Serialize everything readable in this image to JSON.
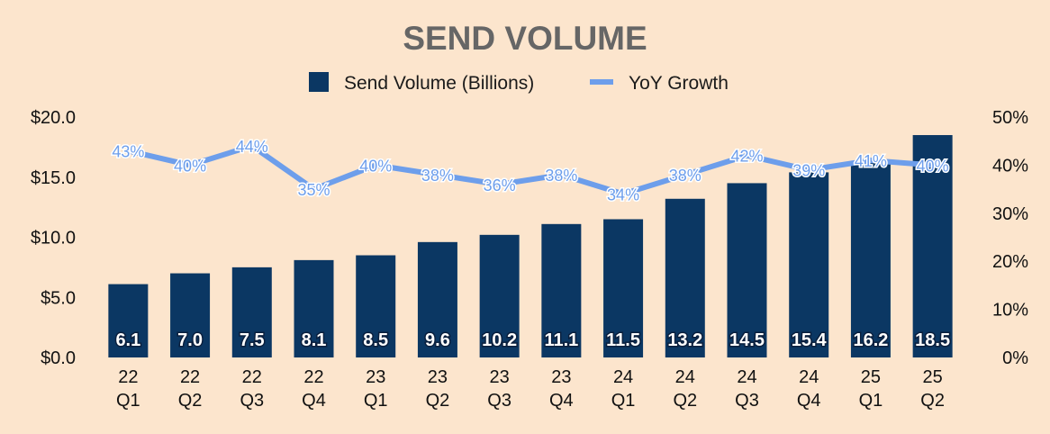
{
  "chart_data": {
    "type": "bar",
    "title": "SEND VOLUME",
    "categories": [
      [
        "22",
        "Q1"
      ],
      [
        "22",
        "Q2"
      ],
      [
        "22",
        "Q3"
      ],
      [
        "22",
        "Q4"
      ],
      [
        "23",
        "Q1"
      ],
      [
        "23",
        "Q2"
      ],
      [
        "23",
        "Q3"
      ],
      [
        "23",
        "Q4"
      ],
      [
        "24",
        "Q1"
      ],
      [
        "24",
        "Q2"
      ],
      [
        "24",
        "Q3"
      ],
      [
        "24",
        "Q4"
      ],
      [
        "25",
        "Q1"
      ],
      [
        "25",
        "Q2"
      ]
    ],
    "series": [
      {
        "name": "Send Volume (Billions)",
        "type": "bar",
        "axis": "left",
        "color": "#0b3763",
        "values": [
          6.1,
          7.0,
          7.5,
          8.1,
          8.5,
          9.6,
          10.2,
          11.1,
          11.5,
          13.2,
          14.5,
          15.4,
          16.2,
          18.5
        ],
        "labels": [
          "6.1",
          "7.0",
          "7.5",
          "8.1",
          "8.5",
          "9.6",
          "10.2",
          "11.1",
          "11.5",
          "13.2",
          "14.5",
          "15.4",
          "16.2",
          "18.5"
        ]
      },
      {
        "name": "YoY Growth",
        "type": "line",
        "axis": "right",
        "color": "#6d9eeb",
        "values": [
          43,
          40,
          44,
          35,
          40,
          38,
          36,
          38,
          34,
          38,
          42,
          39,
          41,
          40
        ],
        "labels": [
          "43%",
          "40%",
          "44%",
          "35%",
          "40%",
          "38%",
          "36%",
          "38%",
          "34%",
          "38%",
          "42%",
          "39%",
          "41%",
          "40%"
        ]
      }
    ],
    "y_left": {
      "min": 0,
      "max": 20,
      "ticks": [
        0,
        5,
        10,
        15,
        20
      ],
      "tick_labels": [
        "$0.0",
        "$5.0",
        "$10.0",
        "$15.0",
        "$20.0"
      ]
    },
    "y_right": {
      "min": 0,
      "max": 50,
      "ticks": [
        0,
        10,
        20,
        30,
        40,
        50
      ],
      "tick_labels": [
        "0%",
        "10%",
        "20%",
        "30%",
        "40%",
        "50%"
      ]
    },
    "legend_position": "top-center",
    "grid": false,
    "background": "#fce5cd"
  }
}
